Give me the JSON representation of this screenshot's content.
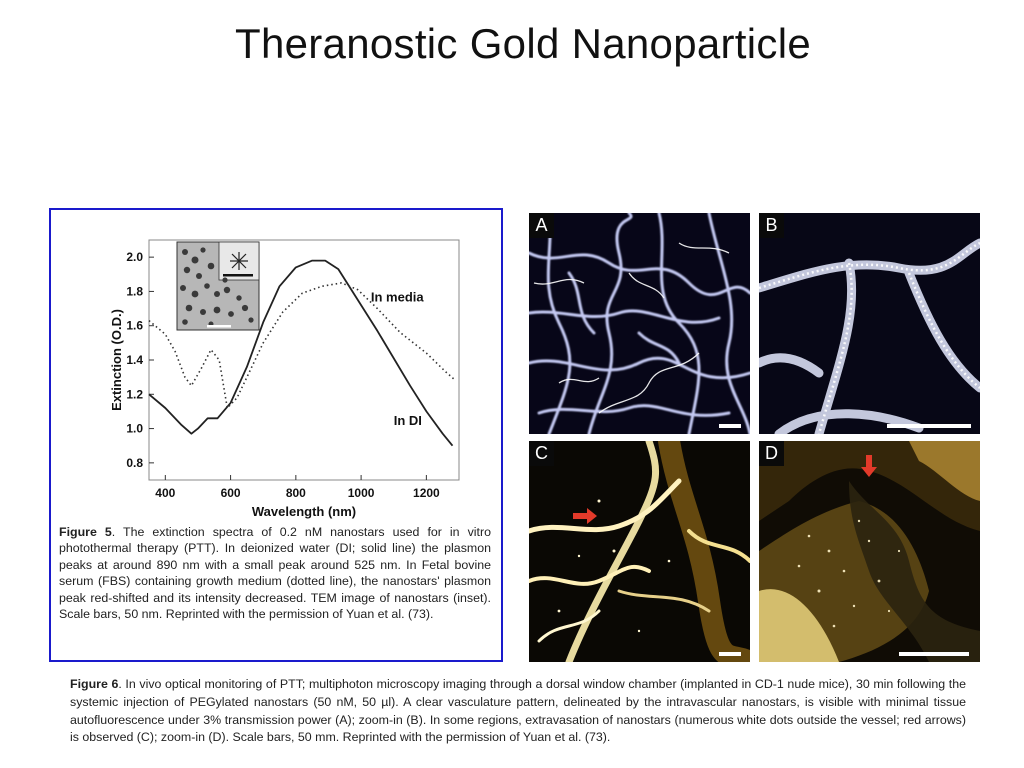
{
  "slide": {
    "title": "Theranostic Gold Nanoparticle"
  },
  "figure5": {
    "caption_label": "Figure 5",
    "caption_text": ".  The extinction spectra of 0.2 nM nanostars used for in vitro photothermal therapy (PTT). In deionized water (DI; solid line) the plasmon peaks at around 890 nm with a small peak around 525 nm. In Fetal bovine serum (FBS) containing growth medium (dotted line), the nanostars' plasmon peak red-shifted and its intensity decreased. TEM image of nanostars (inset). Scale bars, 50 nm. Reprinted with the permission of Yuan et al. (73).",
    "inset_label": "TEM image of nanostars (inset)"
  },
  "chart_data": {
    "type": "line",
    "xlabel": "Wavelength (nm)",
    "ylabel": "Extinction (O.D.)",
    "xlim": [
      350,
      1300
    ],
    "ylim": [
      0.7,
      2.1
    ],
    "x_ticks": [
      400,
      600,
      800,
      1000,
      1200
    ],
    "y_ticks": [
      0.8,
      1.0,
      1.2,
      1.4,
      1.6,
      1.8,
      2.0
    ],
    "grid": false,
    "series": [
      {
        "name": "In DI",
        "style": "solid",
        "color": "#222222",
        "x": [
          350,
          400,
          450,
          480,
          500,
          530,
          560,
          600,
          650,
          700,
          750,
          800,
          850,
          890,
          930,
          980,
          1050,
          1150,
          1200,
          1250,
          1280
        ],
        "y": [
          1.2,
          1.12,
          1.02,
          0.97,
          1.0,
          1.06,
          1.06,
          1.15,
          1.36,
          1.62,
          1.83,
          1.94,
          1.98,
          1.98,
          1.93,
          1.78,
          1.57,
          1.25,
          1.1,
          0.97,
          0.9
        ]
      },
      {
        "name": "In media",
        "style": "dotted",
        "color": "#333333",
        "x": [
          350,
          400,
          430,
          460,
          480,
          510,
          540,
          565,
          590,
          620,
          660,
          700,
          760,
          820,
          880,
          940,
          990,
          1050,
          1120,
          1200,
          1260,
          1290
        ],
        "y": [
          1.63,
          1.55,
          1.45,
          1.3,
          1.25,
          1.35,
          1.46,
          1.4,
          1.12,
          1.18,
          1.34,
          1.5,
          1.68,
          1.79,
          1.83,
          1.85,
          1.81,
          1.7,
          1.56,
          1.44,
          1.33,
          1.28
        ]
      }
    ],
    "annotations": [
      {
        "text": "In media",
        "x": 1030,
        "y": 1.74
      },
      {
        "text": "In DI",
        "x": 1100,
        "y": 1.02
      }
    ]
  },
  "figure6": {
    "panels": [
      {
        "letter": "A",
        "description": "multiphoton microscopy, vasculature"
      },
      {
        "letter": "B",
        "description": "zoom-in of A"
      },
      {
        "letter": "C",
        "description": "extravasation of nanostars"
      },
      {
        "letter": "D",
        "description": "zoom-in of C"
      }
    ],
    "caption_label": "Figure 6",
    "caption_text": ".  In vivo optical monitoring of PTT; multiphoton microscopy imaging through a dorsal window chamber (implanted in CD-1 nude mice), 30 min following the systemic injection of PEGylated nanostars (50 nM, 50 µl). A clear vasculature pattern, delineated by the intravascular nanostars, is visible with minimal tissue autofluorescence under 3% transmission power (A); zoom-in (B). In some regions, extravasation of nanostars (numerous white dots outside the vessel; red arrows) is observed (C); zoom-in (D). Scale bars, 50 mm. Reprinted with the permission of Yuan et al. (73).",
    "colors": {
      "arrow": "#e23a2a",
      "vessel_blue": "#d8dcff",
      "vessel_gold": "#fff1b0"
    }
  }
}
